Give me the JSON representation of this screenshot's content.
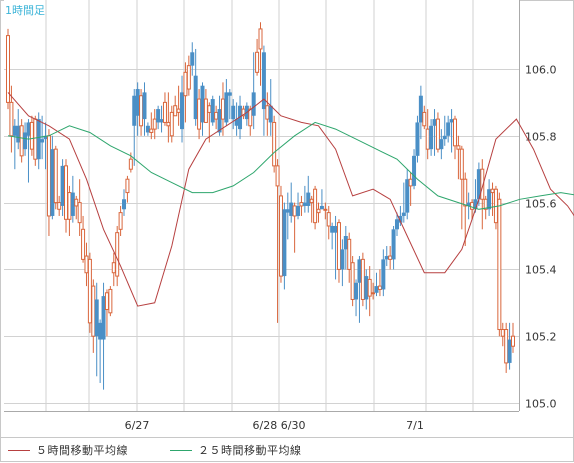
{
  "timeframe_label": "1時間足",
  "colors": {
    "up": "#d9663c",
    "down": "#4a8fc6",
    "ma5": "#b74040",
    "ma25": "#2ea66d",
    "grid": "#d2d2d2"
  },
  "legend": {
    "ma5_label": "５時間移動平均線",
    "ma25_label": "２５時間移動平均線"
  },
  "chart_data": {
    "type": "candlestick",
    "ylim": [
      105.0,
      106.2
    ],
    "y_ticks": [
      "106.0",
      "105.8",
      "105.6",
      "105.4",
      "105.2",
      "105.0"
    ],
    "x_tick_labels": [
      "6/27",
      "6/28 6/30",
      "7/1"
    ],
    "series": [
      {
        "name": "５時間移動平均線",
        "points": [
          [
            0,
            105.93
          ],
          [
            6,
            105.86
          ],
          [
            12,
            105.83
          ],
          [
            18,
            105.79
          ],
          [
            23,
            105.67
          ],
          [
            28,
            105.52
          ],
          [
            33,
            105.41
          ],
          [
            38,
            105.29
          ],
          [
            43,
            105.3
          ],
          [
            48,
            105.47
          ],
          [
            53,
            105.7
          ],
          [
            58,
            105.79
          ],
          [
            64,
            105.83
          ],
          [
            70,
            105.87
          ],
          [
            75,
            105.91
          ],
          [
            80,
            105.86
          ],
          [
            86,
            105.84
          ],
          [
            91,
            105.83
          ],
          [
            96,
            105.76
          ],
          [
            101,
            105.62
          ],
          [
            107,
            105.64
          ],
          [
            112,
            105.61
          ],
          [
            117,
            105.5
          ],
          [
            122,
            105.39
          ],
          [
            128,
            105.39
          ],
          [
            133,
            105.46
          ],
          [
            138,
            105.61
          ],
          [
            143,
            105.79
          ],
          [
            149,
            105.85
          ],
          [
            154,
            105.76
          ],
          [
            159,
            105.64
          ],
          [
            164,
            105.59
          ],
          [
            168,
            105.53
          ]
        ]
      },
      {
        "name": "２５時間移動平均線",
        "points": [
          [
            0,
            105.8
          ],
          [
            6,
            105.79
          ],
          [
            12,
            105.8
          ],
          [
            18,
            105.83
          ],
          [
            24,
            105.81
          ],
          [
            30,
            105.77
          ],
          [
            36,
            105.74
          ],
          [
            42,
            105.69
          ],
          [
            48,
            105.66
          ],
          [
            54,
            105.63
          ],
          [
            60,
            105.63
          ],
          [
            66,
            105.65
          ],
          [
            72,
            105.69
          ],
          [
            78,
            105.75
          ],
          [
            84,
            105.8
          ],
          [
            90,
            105.84
          ],
          [
            96,
            105.82
          ],
          [
            102,
            105.79
          ],
          [
            108,
            105.76
          ],
          [
            114,
            105.73
          ],
          [
            120,
            105.67
          ],
          [
            126,
            105.62
          ],
          [
            132,
            105.6
          ],
          [
            138,
            105.58
          ],
          [
            144,
            105.59
          ],
          [
            150,
            105.61
          ],
          [
            156,
            105.62
          ],
          [
            162,
            105.63
          ],
          [
            168,
            105.62
          ]
        ]
      }
    ],
    "candles": [
      [
        105.9,
        106.1,
        106.12,
        105.88
      ],
      [
        105.8,
        105.9,
        105.95,
        105.75
      ],
      [
        105.83,
        105.8,
        105.85,
        105.7
      ],
      [
        105.83,
        105.78,
        105.88,
        105.76
      ],
      [
        105.74,
        105.83,
        105.85,
        105.72
      ],
      [
        105.81,
        105.76,
        105.84,
        105.74
      ],
      [
        105.84,
        105.8,
        105.85,
        105.66
      ],
      [
        105.76,
        105.84,
        105.86,
        105.74
      ],
      [
        105.73,
        105.85,
        105.86,
        105.71
      ],
      [
        105.85,
        105.73,
        105.87,
        105.7
      ],
      [
        105.79,
        105.78,
        105.86,
        105.73
      ],
      [
        105.8,
        105.79,
        105.84,
        105.7
      ],
      [
        105.56,
        105.8,
        105.82,
        105.5
      ],
      [
        105.76,
        105.56,
        105.8,
        105.55
      ],
      [
        105.6,
        105.76,
        105.77,
        105.58
      ],
      [
        105.58,
        105.6,
        105.62,
        105.56
      ],
      [
        105.71,
        105.59,
        105.73,
        105.56
      ],
      [
        105.55,
        105.71,
        105.73,
        105.51
      ],
      [
        105.55,
        105.63,
        105.65,
        105.5
      ],
      [
        105.63,
        105.56,
        105.68,
        105.54
      ],
      [
        105.59,
        105.61,
        105.62,
        105.55
      ],
      [
        105.54,
        105.6,
        105.67,
        105.5
      ],
      [
        105.43,
        105.52,
        105.56,
        105.42
      ],
      [
        105.39,
        105.44,
        105.48,
        105.35
      ],
      [
        105.24,
        105.43,
        105.45,
        105.21
      ],
      [
        105.2,
        105.35,
        105.37,
        105.15
      ],
      [
        105.31,
        105.2,
        105.36,
        105.08
      ],
      [
        105.24,
        105.19,
        105.25,
        105.06
      ],
      [
        105.32,
        105.19,
        105.36,
        105.04
      ],
      [
        105.28,
        105.33,
        105.34,
        105.2
      ],
      [
        105.27,
        105.34,
        105.35,
        105.26
      ],
      [
        105.39,
        105.42,
        105.45,
        105.35
      ],
      [
        105.38,
        105.51,
        105.53,
        105.35
      ],
      [
        105.52,
        105.57,
        105.59,
        105.5
      ],
      [
        105.61,
        105.58,
        105.64,
        105.56
      ],
      [
        105.63,
        105.67,
        105.68,
        105.6
      ],
      [
        105.7,
        105.73,
        105.75,
        105.69
      ],
      [
        105.92,
        105.83,
        105.94,
        105.71
      ],
      [
        105.94,
        105.86,
        105.96,
        105.8
      ],
      [
        105.83,
        105.92,
        105.94,
        105.8
      ],
      [
        105.93,
        105.85,
        105.96,
        105.8
      ],
      [
        105.83,
        105.81,
        105.84,
        105.8
      ],
      [
        105.81,
        105.82,
        105.87,
        105.79
      ],
      [
        105.82,
        105.85,
        105.88,
        105.79
      ],
      [
        105.88,
        105.84,
        105.89,
        105.82
      ],
      [
        105.85,
        105.84,
        105.89,
        105.81
      ],
      [
        105.84,
        105.9,
        105.93,
        105.83
      ],
      [
        105.83,
        105.84,
        105.93,
        105.78
      ],
      [
        105.8,
        105.87,
        105.89,
        105.78
      ],
      [
        105.86,
        105.89,
        105.92,
        105.86
      ],
      [
        105.87,
        105.88,
        105.95,
        105.83
      ],
      [
        105.93,
        105.82,
        105.98,
        105.78
      ],
      [
        105.92,
        105.99,
        106.02,
        105.84
      ],
      [
        105.94,
        106.01,
        106.04,
        105.92
      ],
      [
        106.05,
        106.01,
        106.08,
        105.98
      ],
      [
        105.98,
        105.85,
        106.06,
        105.83
      ],
      [
        105.82,
        105.91,
        105.94,
        105.79
      ],
      [
        105.95,
        105.84,
        105.96,
        105.8
      ],
      [
        105.84,
        105.91,
        105.94,
        105.84
      ],
      [
        105.87,
        105.89,
        105.9,
        105.78
      ],
      [
        105.91,
        105.84,
        105.92,
        105.83
      ],
      [
        105.85,
        105.87,
        105.89,
        105.82
      ],
      [
        105.88,
        105.81,
        105.92,
        105.8
      ],
      [
        105.85,
        105.91,
        105.96,
        105.8
      ],
      [
        105.93,
        105.84,
        105.97,
        105.83
      ],
      [
        105.93,
        105.92,
        105.94,
        105.85
      ],
      [
        105.89,
        105.85,
        105.91,
        105.82
      ],
      [
        105.85,
        105.83,
        105.9,
        105.8
      ],
      [
        105.89,
        105.82,
        105.92,
        105.79
      ],
      [
        105.86,
        105.88,
        105.89,
        105.85
      ],
      [
        105.89,
        105.85,
        105.9,
        105.83
      ],
      [
        105.83,
        105.88,
        105.89,
        105.8
      ],
      [
        105.93,
        105.86,
        106.05,
        105.82
      ],
      [
        105.99,
        106.05,
        106.09,
        105.98
      ],
      [
        106.06,
        106.12,
        106.14,
        105.95
      ],
      [
        106.05,
        105.88,
        106.07,
        105.8
      ],
      [
        105.85,
        105.89,
        105.93,
        105.8
      ],
      [
        105.89,
        105.84,
        105.97,
        105.8
      ],
      [
        105.71,
        105.84,
        105.86,
        105.69
      ],
      [
        105.65,
        105.71,
        105.73,
        105.24
      ],
      [
        105.38,
        105.62,
        105.65,
        105.36
      ],
      [
        105.58,
        105.38,
        105.6,
        105.34
      ],
      [
        105.58,
        105.57,
        105.63,
        105.49
      ],
      [
        105.6,
        105.56,
        105.66,
        105.54
      ],
      [
        105.56,
        105.59,
        105.6,
        105.45
      ],
      [
        105.59,
        105.56,
        105.63,
        105.55
      ],
      [
        105.59,
        105.6,
        105.62,
        105.56
      ],
      [
        105.6,
        105.59,
        105.65,
        105.57
      ],
      [
        105.63,
        105.59,
        105.68,
        105.57
      ],
      [
        105.6,
        105.61,
        105.62,
        105.54
      ],
      [
        105.54,
        105.64,
        105.65,
        105.52
      ],
      [
        105.57,
        105.58,
        105.6,
        105.54
      ],
      [
        105.59,
        105.58,
        105.64,
        105.58
      ],
      [
        105.58,
        105.58,
        105.6,
        105.55
      ],
      [
        105.53,
        105.57,
        105.59,
        105.49
      ],
      [
        105.53,
        105.51,
        105.54,
        105.46
      ],
      [
        105.53,
        105.51,
        105.56,
        105.37
      ],
      [
        105.4,
        105.54,
        105.55,
        105.36
      ],
      [
        105.46,
        105.4,
        105.49,
        105.35
      ],
      [
        105.5,
        105.46,
        105.53,
        105.4
      ],
      [
        105.4,
        105.49,
        105.51,
        105.36
      ],
      [
        105.31,
        105.42,
        105.44,
        105.29
      ],
      [
        105.36,
        105.31,
        105.37,
        105.26
      ],
      [
        105.43,
        105.36,
        105.44,
        105.24
      ],
      [
        105.31,
        105.43,
        105.45,
        105.29
      ],
      [
        105.38,
        105.31,
        105.4,
        105.28
      ],
      [
        105.32,
        105.37,
        105.41,
        105.26
      ],
      [
        105.33,
        105.33,
        105.36,
        105.31
      ],
      [
        105.35,
        105.33,
        105.39,
        105.32
      ],
      [
        105.34,
        105.35,
        105.4,
        105.32
      ],
      [
        105.43,
        105.34,
        105.46,
        105.32
      ],
      [
        105.44,
        105.43,
        105.47,
        105.41
      ],
      [
        105.43,
        105.44,
        105.47,
        105.4
      ],
      [
        105.52,
        105.43,
        105.53,
        105.4
      ],
      [
        105.55,
        105.52,
        105.57,
        105.5
      ],
      [
        105.56,
        105.54,
        105.59,
        105.53
      ],
      [
        105.57,
        105.56,
        105.66,
        105.54
      ],
      [
        105.67,
        105.57,
        105.7,
        105.55
      ],
      [
        105.65,
        105.67,
        105.69,
        105.59
      ],
      [
        105.74,
        105.65,
        105.76,
        105.64
      ],
      [
        105.84,
        105.74,
        105.86,
        105.72
      ],
      [
        105.92,
        105.84,
        105.95,
        105.79
      ],
      [
        105.83,
        105.87,
        105.89,
        105.82
      ],
      [
        105.76,
        105.82,
        105.88,
        105.73
      ],
      [
        105.83,
        105.76,
        105.85,
        105.74
      ],
      [
        105.85,
        105.83,
        105.88,
        105.74
      ],
      [
        105.76,
        105.85,
        105.87,
        105.75
      ],
      [
        105.79,
        105.76,
        105.82,
        105.73
      ],
      [
        105.8,
        105.79,
        105.86,
        105.77
      ],
      [
        105.84,
        105.8,
        105.86,
        105.78
      ],
      [
        105.85,
        105.84,
        105.88,
        105.75
      ],
      [
        105.77,
        105.85,
        105.86,
        105.73
      ],
      [
        105.76,
        105.77,
        105.8,
        105.67
      ],
      [
        105.67,
        105.76,
        105.77,
        105.52
      ],
      [
        105.59,
        105.67,
        105.69,
        105.47
      ],
      [
        105.6,
        105.59,
        105.63,
        105.55
      ],
      [
        105.58,
        105.6,
        105.61,
        105.55
      ],
      [
        105.61,
        105.58,
        105.67,
        105.57
      ],
      [
        105.7,
        105.61,
        105.72,
        105.59
      ],
      [
        105.61,
        105.7,
        105.73,
        105.52
      ],
      [
        105.58,
        105.61,
        105.62,
        105.55
      ],
      [
        105.64,
        105.58,
        105.67,
        105.56
      ],
      [
        105.63,
        105.64,
        105.66,
        105.56
      ],
      [
        105.54,
        105.64,
        105.65,
        105.52
      ],
      [
        105.22,
        105.61,
        105.63,
        105.2
      ],
      [
        105.2,
        105.22,
        105.24,
        105.17
      ],
      [
        105.12,
        105.22,
        105.24,
        105.09
      ],
      [
        105.19,
        105.12,
        105.24,
        105.1
      ],
      [
        105.17,
        105.2,
        105.24,
        105.15
      ]
    ]
  }
}
